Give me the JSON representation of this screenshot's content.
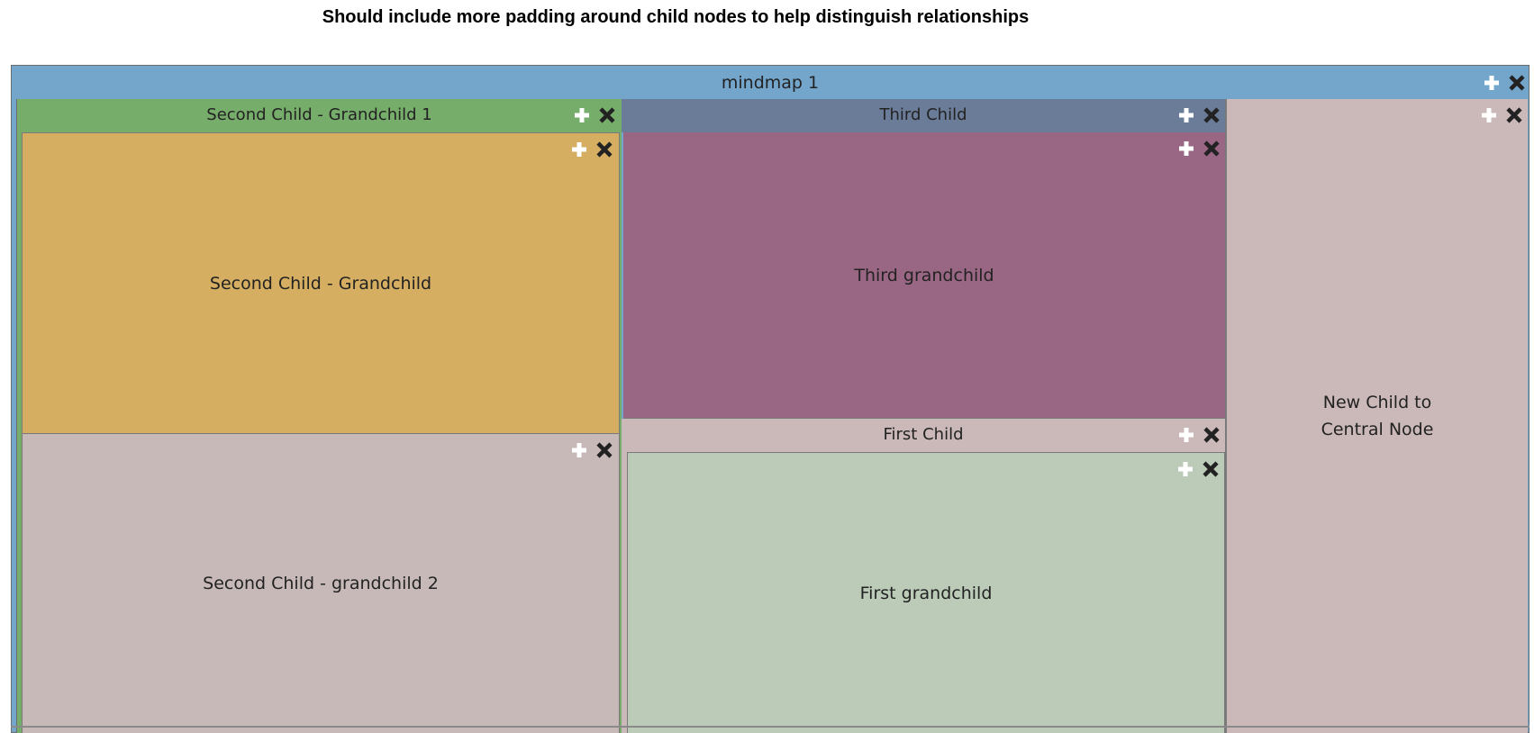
{
  "banner": "Should include more padding around child nodes to help distinguish relationships",
  "colors": {
    "root_header": "#74a5cb",
    "second_child": "#77ad6b",
    "grandchild_1": "#d5ae62",
    "grandchild_2": "#c8b9b9",
    "third_child_header": "#6b7c99",
    "third_grandchild": "#996683",
    "first_child": "#cbb9b9",
    "first_grandchild": "#bbcbb8",
    "new_child": "#cbb9b9",
    "icon_plus": "#ffffff",
    "icon_close": "#222222"
  },
  "root": {
    "title": "mindmap 1"
  },
  "second_child": {
    "title": "Second Child - Grandchild 1",
    "grandchild_1": "Second Child - Grandchild",
    "grandchild_2": "Second Child - grandchild 2"
  },
  "third_child": {
    "title": "Third Child",
    "grandchild": "Third grandchild"
  },
  "first_child": {
    "title": "First Child",
    "grandchild": "First grandchild"
  },
  "new_child": {
    "line1": "New Child to",
    "line2": "Central Node"
  },
  "icons": {
    "add": "plus-icon",
    "remove": "close-icon"
  }
}
